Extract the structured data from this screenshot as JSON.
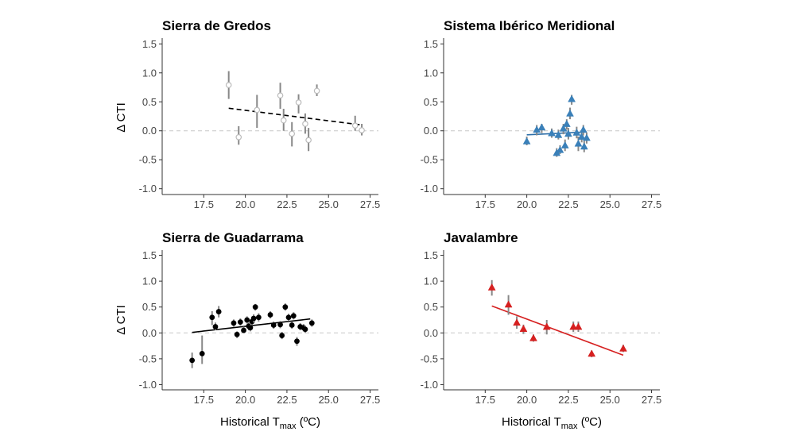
{
  "figure": {
    "xlabel_main": "Historical T",
    "xlabel_sub": "max",
    "xlabel_unit": " (ºC)",
    "ylabel": "Δ CTI"
  },
  "chart_data": [
    {
      "type": "scatter",
      "title": "Sierra de Gredos",
      "xlim": [
        15.0,
        28.0
      ],
      "ylim": [
        -1.1,
        1.6
      ],
      "xticks": [
        "17.5",
        "20.0",
        "22.5",
        "25.0",
        "27.5"
      ],
      "yticks": [
        "1.5",
        "1.0",
        "0.5",
        "0.0",
        "-0.5",
        "-1.0"
      ],
      "grid": false,
      "reference_line_y": 0,
      "marker": "open-circle",
      "color": "#bbbbbb",
      "errorbar_color": "#888888",
      "trend": {
        "style": "dashed",
        "color": "#000000",
        "x": [
          19.0,
          27.0
        ],
        "y": [
          0.39,
          0.1
        ]
      },
      "points": [
        {
          "x": 19.0,
          "y": 0.79,
          "lo": 0.55,
          "hi": 1.03
        },
        {
          "x": 19.6,
          "y": -0.11,
          "lo": -0.24,
          "hi": 0.08
        },
        {
          "x": 20.7,
          "y": 0.36,
          "lo": 0.05,
          "hi": 0.62
        },
        {
          "x": 22.1,
          "y": 0.61,
          "lo": 0.38,
          "hi": 0.83
        },
        {
          "x": 22.3,
          "y": 0.18,
          "lo": 0.0,
          "hi": 0.38
        },
        {
          "x": 22.8,
          "y": -0.05,
          "lo": -0.27,
          "hi": 0.15
        },
        {
          "x": 23.2,
          "y": 0.49,
          "lo": 0.3,
          "hi": 0.63
        },
        {
          "x": 23.6,
          "y": 0.12,
          "lo": -0.05,
          "hi": 0.3
        },
        {
          "x": 23.8,
          "y": -0.16,
          "lo": -0.35,
          "hi": 0.05
        },
        {
          "x": 24.3,
          "y": 0.69,
          "lo": 0.6,
          "hi": 0.8
        },
        {
          "x": 26.6,
          "y": 0.09,
          "lo": 0.0,
          "hi": 0.26
        },
        {
          "x": 27.0,
          "y": 0.01,
          "lo": -0.08,
          "hi": 0.12
        }
      ]
    },
    {
      "type": "scatter",
      "title": "Sistema Ibérico Meridional",
      "xlim": [
        15.0,
        28.0
      ],
      "ylim": [
        -1.1,
        1.6
      ],
      "xticks": [
        "17.5",
        "20.0",
        "22.5",
        "25.0",
        "27.5"
      ],
      "yticks": [
        "1.5",
        "1.0",
        "0.5",
        "0.0",
        "-0.5",
        "-1.0"
      ],
      "grid": false,
      "reference_line_y": 0,
      "marker": "triangle",
      "color": "#3a80b9",
      "errorbar_color": "#888888",
      "trend": {
        "style": "solid",
        "color": "#2b6ea8",
        "x": [
          20.0,
          23.6
        ],
        "y": [
          -0.07,
          -0.02
        ]
      },
      "points": [
        {
          "x": 20.0,
          "y": -0.18,
          "lo": -0.25,
          "hi": -0.1
        },
        {
          "x": 20.6,
          "y": 0.02,
          "lo": -0.08,
          "hi": 0.1
        },
        {
          "x": 20.9,
          "y": 0.06,
          "lo": -0.04,
          "hi": 0.12
        },
        {
          "x": 21.5,
          "y": -0.04,
          "lo": -0.12,
          "hi": 0.04
        },
        {
          "x": 21.8,
          "y": -0.38,
          "lo": -0.45,
          "hi": -0.3
        },
        {
          "x": 21.9,
          "y": -0.07,
          "lo": -0.15,
          "hi": 0.02
        },
        {
          "x": 22.0,
          "y": -0.33,
          "lo": -0.4,
          "hi": -0.25
        },
        {
          "x": 22.2,
          "y": 0.04,
          "lo": -0.06,
          "hi": 0.12
        },
        {
          "x": 22.3,
          "y": -0.25,
          "lo": -0.35,
          "hi": -0.15
        },
        {
          "x": 22.4,
          "y": 0.12,
          "lo": 0.02,
          "hi": 0.2
        },
        {
          "x": 22.5,
          "y": -0.05,
          "lo": -0.15,
          "hi": 0.05
        },
        {
          "x": 22.6,
          "y": 0.3,
          "lo": 0.2,
          "hi": 0.4
        },
        {
          "x": 22.7,
          "y": 0.55,
          "lo": 0.45,
          "hi": 0.62
        },
        {
          "x": 23.0,
          "y": -0.03,
          "lo": -0.13,
          "hi": 0.07
        },
        {
          "x": 23.1,
          "y": -0.22,
          "lo": -0.35,
          "hi": -0.1
        },
        {
          "x": 23.3,
          "y": -0.1,
          "lo": -0.2,
          "hi": 0.0
        },
        {
          "x": 23.4,
          "y": 0.02,
          "lo": -0.08,
          "hi": 0.1
        },
        {
          "x": 23.45,
          "y": -0.27,
          "lo": -0.37,
          "hi": -0.17
        },
        {
          "x": 23.6,
          "y": -0.12,
          "lo": -0.22,
          "hi": -0.03
        }
      ]
    },
    {
      "type": "scatter",
      "title": "Sierra de Guadarrama",
      "xlim": [
        15.0,
        28.0
      ],
      "ylim": [
        -1.1,
        1.6
      ],
      "xticks": [
        "17.5",
        "20.0",
        "22.5",
        "25.0",
        "27.5"
      ],
      "yticks": [
        "1.5",
        "1.0",
        "0.5",
        "0.0",
        "-0.5",
        "-1.0"
      ],
      "grid": false,
      "reference_line_y": 0,
      "marker": "filled-circle",
      "color": "#000000",
      "errorbar_color": "#888888",
      "trend": {
        "style": "solid",
        "color": "#000000",
        "x": [
          16.8,
          23.9
        ],
        "y": [
          0.01,
          0.27
        ]
      },
      "points": [
        {
          "x": 16.8,
          "y": -0.53,
          "lo": -0.68,
          "hi": -0.38
        },
        {
          "x": 17.4,
          "y": -0.4,
          "lo": -0.6,
          "hi": -0.05
        },
        {
          "x": 18.0,
          "y": 0.3,
          "lo": 0.15,
          "hi": 0.42
        },
        {
          "x": 18.2,
          "y": 0.12,
          "lo": 0.05,
          "hi": 0.2
        },
        {
          "x": 18.4,
          "y": 0.41,
          "lo": 0.3,
          "hi": 0.52
        },
        {
          "x": 19.3,
          "y": 0.19,
          "lo": 0.12,
          "hi": 0.26
        },
        {
          "x": 19.5,
          "y": -0.03,
          "lo": -0.1,
          "hi": 0.03
        },
        {
          "x": 19.7,
          "y": 0.21,
          "lo": 0.14,
          "hi": 0.28
        },
        {
          "x": 19.9,
          "y": 0.05,
          "lo": 0.0,
          "hi": 0.12
        },
        {
          "x": 20.1,
          "y": 0.25,
          "lo": 0.18,
          "hi": 0.32
        },
        {
          "x": 20.2,
          "y": 0.13,
          "lo": 0.05,
          "hi": 0.2
        },
        {
          "x": 20.3,
          "y": 0.1,
          "lo": 0.03,
          "hi": 0.16
        },
        {
          "x": 20.4,
          "y": 0.22,
          "lo": 0.15,
          "hi": 0.3
        },
        {
          "x": 20.5,
          "y": 0.28,
          "lo": 0.2,
          "hi": 0.36
        },
        {
          "x": 20.6,
          "y": 0.5,
          "lo": 0.43,
          "hi": 0.56
        },
        {
          "x": 20.8,
          "y": 0.3,
          "lo": 0.22,
          "hi": 0.38
        },
        {
          "x": 21.5,
          "y": 0.35,
          "lo": 0.28,
          "hi": 0.42
        },
        {
          "x": 21.7,
          "y": 0.15,
          "lo": 0.08,
          "hi": 0.22
        },
        {
          "x": 22.1,
          "y": 0.16,
          "lo": 0.09,
          "hi": 0.23
        },
        {
          "x": 22.2,
          "y": -0.05,
          "lo": -0.12,
          "hi": 0.02
        },
        {
          "x": 22.4,
          "y": 0.5,
          "lo": 0.43,
          "hi": 0.57
        },
        {
          "x": 22.6,
          "y": 0.3,
          "lo": 0.23,
          "hi": 0.37
        },
        {
          "x": 22.8,
          "y": 0.15,
          "lo": 0.08,
          "hi": 0.22
        },
        {
          "x": 22.9,
          "y": 0.33,
          "lo": 0.26,
          "hi": 0.4
        },
        {
          "x": 23.1,
          "y": -0.16,
          "lo": -0.25,
          "hi": -0.08
        },
        {
          "x": 23.3,
          "y": 0.12,
          "lo": 0.05,
          "hi": 0.19
        },
        {
          "x": 23.5,
          "y": 0.1,
          "lo": 0.03,
          "hi": 0.17
        },
        {
          "x": 23.6,
          "y": 0.07,
          "lo": 0.0,
          "hi": 0.14
        },
        {
          "x": 24.0,
          "y": 0.19,
          "lo": 0.12,
          "hi": 0.26
        }
      ]
    },
    {
      "type": "scatter",
      "title": "Javalambre",
      "xlim": [
        15.0,
        28.0
      ],
      "ylim": [
        -1.1,
        1.6
      ],
      "xticks": [
        "17.5",
        "20.0",
        "22.5",
        "25.0",
        "27.5"
      ],
      "yticks": [
        "1.5",
        "1.0",
        "0.5",
        "0.0",
        "-0.5",
        "-1.0"
      ],
      "grid": false,
      "reference_line_y": 0,
      "marker": "triangle",
      "color": "#d62020",
      "errorbar_color": "#888888",
      "trend": {
        "style": "solid",
        "color": "#d62020",
        "x": [
          17.9,
          25.8
        ],
        "y": [
          0.52,
          -0.43
        ]
      },
      "points": [
        {
          "x": 17.9,
          "y": 0.88,
          "lo": 0.72,
          "hi": 1.02
        },
        {
          "x": 18.9,
          "y": 0.55,
          "lo": 0.35,
          "hi": 0.73
        },
        {
          "x": 19.4,
          "y": 0.2,
          "lo": 0.08,
          "hi": 0.32
        },
        {
          "x": 19.8,
          "y": 0.08,
          "lo": -0.02,
          "hi": 0.16
        },
        {
          "x": 20.4,
          "y": -0.1,
          "lo": -0.17,
          "hi": -0.03
        },
        {
          "x": 21.2,
          "y": 0.12,
          "lo": -0.03,
          "hi": 0.25
        },
        {
          "x": 22.8,
          "y": 0.12,
          "lo": 0.02,
          "hi": 0.22
        },
        {
          "x": 23.1,
          "y": 0.12,
          "lo": 0.02,
          "hi": 0.22
        },
        {
          "x": 23.9,
          "y": -0.4,
          "lo": -0.47,
          "hi": -0.34
        },
        {
          "x": 25.8,
          "y": -0.3,
          "lo": -0.37,
          "hi": -0.23
        }
      ]
    }
  ]
}
